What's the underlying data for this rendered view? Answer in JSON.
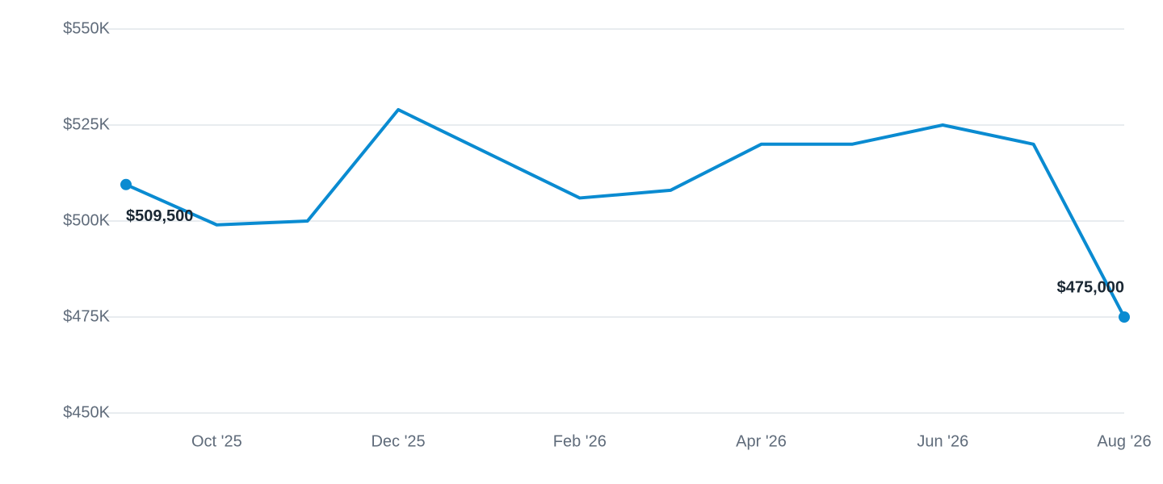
{
  "chart_data": {
    "type": "line",
    "categories": [
      null,
      "Oct '25",
      null,
      "Dec '25",
      null,
      "Feb '26",
      null,
      "Apr '26",
      null,
      "Jun '26",
      null,
      "Aug '26"
    ],
    "series": [
      {
        "color": "#0a8bd1",
        "values": [
          509500,
          499000,
          500000,
          529000,
          517500,
          506000,
          508000,
          520000,
          520000,
          525000,
          520000,
          475000
        ],
        "value_labels": [
          "$509,500",
          null,
          null,
          null,
          null,
          null,
          null,
          null,
          null,
          null,
          null,
          "$475,000"
        ]
      }
    ],
    "ylim": [
      450000,
      550000
    ],
    "yticks": [
      {
        "value": 450000,
        "label": "$450K"
      },
      {
        "value": 475000,
        "label": "$475K"
      },
      {
        "value": 500000,
        "label": "$500K"
      },
      {
        "value": 525000,
        "label": "$525K"
      },
      {
        "value": 550000,
        "label": "$550K"
      }
    ],
    "grid": true
  }
}
